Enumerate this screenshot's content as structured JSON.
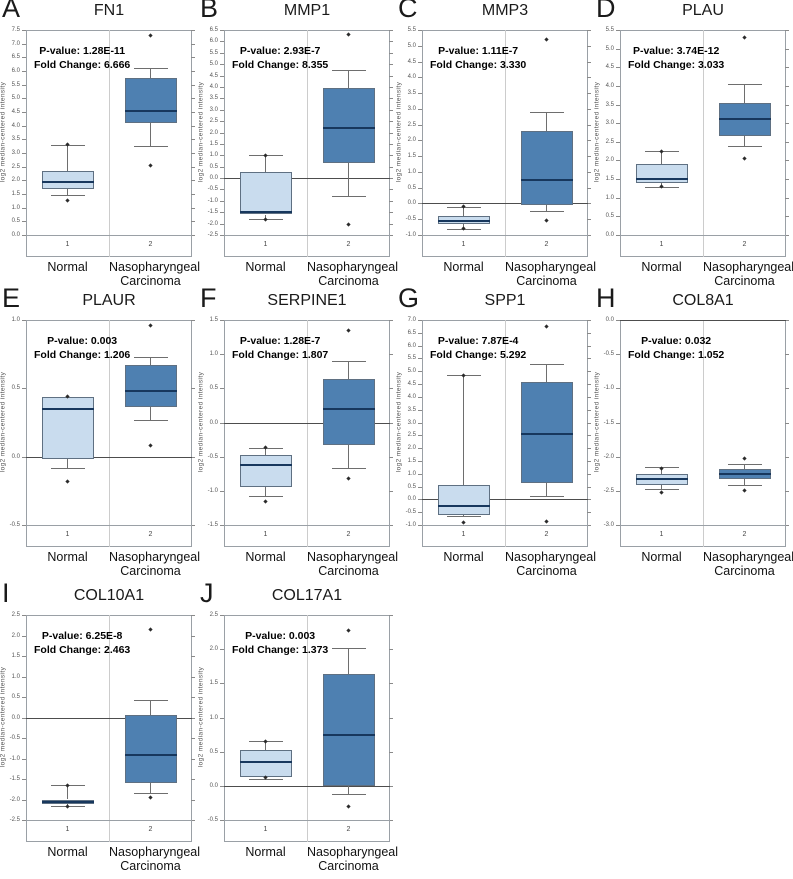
{
  "figure": {
    "ylabel": "log2 median-centered intensity",
    "group_numbers": [
      "1",
      "2"
    ],
    "group_labels": [
      "Normal",
      "Nasopharyngeal Carcinoma"
    ],
    "colors": {
      "normal_box_fill": "#c9dcee",
      "carcinoma_box_fill": "#4e80b1",
      "median_line": "#17375d",
      "box_border": "#5f7082",
      "frame_border": "#9aa0a6",
      "divider": "#cccccc",
      "zero_line": "#4d4d4d",
      "whisker": "#6e6e6e"
    }
  },
  "chart_data": [
    {
      "type": "boxplot",
      "label": "A",
      "title": "FN1",
      "pvalue_text": "P-value: 1.28E-11",
      "fold_text": "Fold Change: 6.666",
      "ylim": [
        0.0,
        7.5
      ],
      "ytick_step": 0.5,
      "groups": [
        {
          "name": "Normal",
          "x": "1",
          "q1": 1.7,
          "q3": 2.35,
          "median": 1.95,
          "whisker_low": 1.45,
          "whisker_high": 3.3,
          "outliers": [
            3.3,
            1.25
          ]
        },
        {
          "name": "Nasopharyngeal Carcinoma",
          "x": "2",
          "q1": 4.1,
          "q3": 5.75,
          "median": 4.55,
          "whisker_low": 3.25,
          "whisker_high": 6.1,
          "outliers": [
            7.3,
            2.55
          ]
        }
      ]
    },
    {
      "type": "boxplot",
      "label": "B",
      "title": "MMP1",
      "pvalue_text": "P-value: 2.93E-7",
      "fold_text": "Fold Change: 8.355",
      "ylim": [
        -2.5,
        6.5
      ],
      "ytick_step": 0.5,
      "groups": [
        {
          "name": "Normal",
          "x": "1",
          "q1": -1.6,
          "q3": 0.25,
          "median": -1.5,
          "whisker_low": -1.8,
          "whisker_high": 1.0,
          "outliers": [
            1.0,
            -1.8
          ]
        },
        {
          "name": "Nasopharyngeal Carcinoma",
          "x": "2",
          "q1": 0.65,
          "q3": 3.95,
          "median": 2.2,
          "whisker_low": -0.8,
          "whisker_high": 4.75,
          "outliers": [
            6.3,
            -2.05
          ]
        }
      ]
    },
    {
      "type": "boxplot",
      "label": "C",
      "title": "MMP3",
      "pvalue_text": "P-value: 1.11E-7",
      "fold_text": "Fold Change: 3.330",
      "ylim": [
        -1.0,
        5.5
      ],
      "ytick_step": 0.5,
      "groups": [
        {
          "name": "Normal",
          "x": "1",
          "q1": -0.65,
          "q3": -0.4,
          "median": -0.55,
          "whisker_low": -0.8,
          "whisker_high": -0.1,
          "outliers": [
            -0.1,
            -0.8
          ]
        },
        {
          "name": "Nasopharyngeal Carcinoma",
          "x": "2",
          "q1": -0.05,
          "q3": 2.3,
          "median": 0.75,
          "whisker_low": -0.25,
          "whisker_high": 2.9,
          "outliers": [
            5.2,
            -0.55
          ]
        }
      ]
    },
    {
      "type": "boxplot",
      "label": "D",
      "title": "PLAU",
      "pvalue_text": "P-value: 3.74E-12",
      "fold_text": "Fold Change: 3.033",
      "ylim": [
        0.0,
        5.5
      ],
      "ytick_step": 0.5,
      "groups": [
        {
          "name": "Normal",
          "x": "1",
          "q1": 1.4,
          "q3": 1.9,
          "median": 1.5,
          "whisker_low": 1.3,
          "whisker_high": 2.25,
          "outliers": [
            2.25,
            1.3
          ]
        },
        {
          "name": "Nasopharyngeal Carcinoma",
          "x": "2",
          "q1": 2.65,
          "q3": 3.55,
          "median": 3.1,
          "whisker_low": 2.4,
          "whisker_high": 4.05,
          "outliers": [
            5.3,
            2.05
          ]
        }
      ]
    },
    {
      "type": "boxplot",
      "label": "E",
      "title": "PLAUR",
      "pvalue_text": "P-value: 0.003",
      "fold_text": "Fold Change: 1.206",
      "ylim": [
        -0.5,
        1.0
      ],
      "ytick_step": 0.5,
      "groups": [
        {
          "name": "Normal",
          "x": "1",
          "q1": -0.02,
          "q3": 0.44,
          "median": 0.35,
          "whisker_low": -0.08,
          "whisker_high": 0.44,
          "outliers": [
            0.44,
            -0.18
          ]
        },
        {
          "name": "Nasopharyngeal Carcinoma",
          "x": "2",
          "q1": 0.36,
          "q3": 0.67,
          "median": 0.48,
          "whisker_low": 0.27,
          "whisker_high": 0.73,
          "outliers": [
            0.96,
            0.08
          ]
        }
      ]
    },
    {
      "type": "boxplot",
      "label": "F",
      "title": "SERPINE1",
      "pvalue_text": "P-value: 1.28E-7",
      "fold_text": "Fold Change: 1.807",
      "ylim": [
        -1.5,
        1.5
      ],
      "ytick_step": 0.5,
      "groups": [
        {
          "name": "Normal",
          "x": "1",
          "q1": -0.95,
          "q3": -0.48,
          "median": -0.62,
          "whisker_low": -1.07,
          "whisker_high": -0.37,
          "outliers": [
            -0.37,
            -1.15
          ]
        },
        {
          "name": "Nasopharyngeal Carcinoma",
          "x": "2",
          "q1": -0.33,
          "q3": 0.63,
          "median": 0.2,
          "whisker_low": -0.67,
          "whisker_high": 0.9,
          "outliers": [
            1.35,
            -0.82
          ]
        }
      ]
    },
    {
      "type": "boxplot",
      "label": "G",
      "title": "SPP1",
      "pvalue_text": "P-value: 7.87E-4",
      "fold_text": "Fold Change: 5.292",
      "ylim": [
        -1.0,
        7.0
      ],
      "ytick_step": 0.5,
      "groups": [
        {
          "name": "Normal",
          "x": "1",
          "q1": -0.6,
          "q3": 0.55,
          "median": -0.25,
          "whisker_low": -0.65,
          "whisker_high": 4.85,
          "outliers": [
            4.85,
            -0.9
          ]
        },
        {
          "name": "Nasopharyngeal Carcinoma",
          "x": "2",
          "q1": 0.65,
          "q3": 4.6,
          "median": 2.55,
          "whisker_low": 0.15,
          "whisker_high": 5.3,
          "outliers": [
            6.75,
            -0.85
          ]
        }
      ]
    },
    {
      "type": "boxplot",
      "label": "H",
      "title": "COL8A1",
      "pvalue_text": "P-value: 0.032",
      "fold_text": "Fold Change: 1.052",
      "ylim": [
        -3.0,
        0.0
      ],
      "ytick_step": 0.5,
      "groups": [
        {
          "name": "Normal",
          "x": "1",
          "q1": -2.42,
          "q3": -2.25,
          "median": -2.33,
          "whisker_low": -2.47,
          "whisker_high": -2.15,
          "outliers": [
            -2.17,
            -2.52
          ]
        },
        {
          "name": "Nasopharyngeal Carcinoma",
          "x": "2",
          "q1": -2.33,
          "q3": -2.18,
          "median": -2.26,
          "whisker_low": -2.42,
          "whisker_high": -2.1,
          "outliers": [
            -2.03,
            -2.5
          ]
        }
      ]
    },
    {
      "type": "boxplot",
      "label": "I",
      "title": "COL10A1",
      "pvalue_text": "P-value: 6.25E-8",
      "fold_text": "Fold Change: 2.463",
      "ylim": [
        -2.5,
        2.5
      ],
      "ytick_step": 0.5,
      "groups": [
        {
          "name": "Normal",
          "x": "1",
          "q1": -2.12,
          "q3": -2.0,
          "median": -2.05,
          "whisker_low": -2.17,
          "whisker_high": -1.65,
          "outliers": [
            -1.65,
            -2.17
          ]
        },
        {
          "name": "Nasopharyngeal Carcinoma",
          "x": "2",
          "q1": -1.6,
          "q3": 0.05,
          "median": -0.92,
          "whisker_low": -1.85,
          "whisker_high": 0.42,
          "outliers": [
            2.15,
            -1.95
          ]
        }
      ]
    },
    {
      "type": "boxplot",
      "label": "J",
      "title": "COL17A1",
      "pvalue_text": "P-value: 0.003",
      "fold_text": "Fold Change: 1.373",
      "ylim": [
        -0.5,
        2.5
      ],
      "ytick_step": 0.5,
      "groups": [
        {
          "name": "Normal",
          "x": "1",
          "q1": 0.13,
          "q3": 0.53,
          "median": 0.35,
          "whisker_low": 0.1,
          "whisker_high": 0.65,
          "outliers": [
            0.65,
            0.12
          ]
        },
        {
          "name": "Nasopharyngeal Carcinoma",
          "x": "2",
          "q1": 0.0,
          "q3": 1.63,
          "median": 0.75,
          "whisker_low": -0.12,
          "whisker_high": 2.02,
          "outliers": [
            2.27,
            -0.3
          ]
        }
      ]
    }
  ]
}
